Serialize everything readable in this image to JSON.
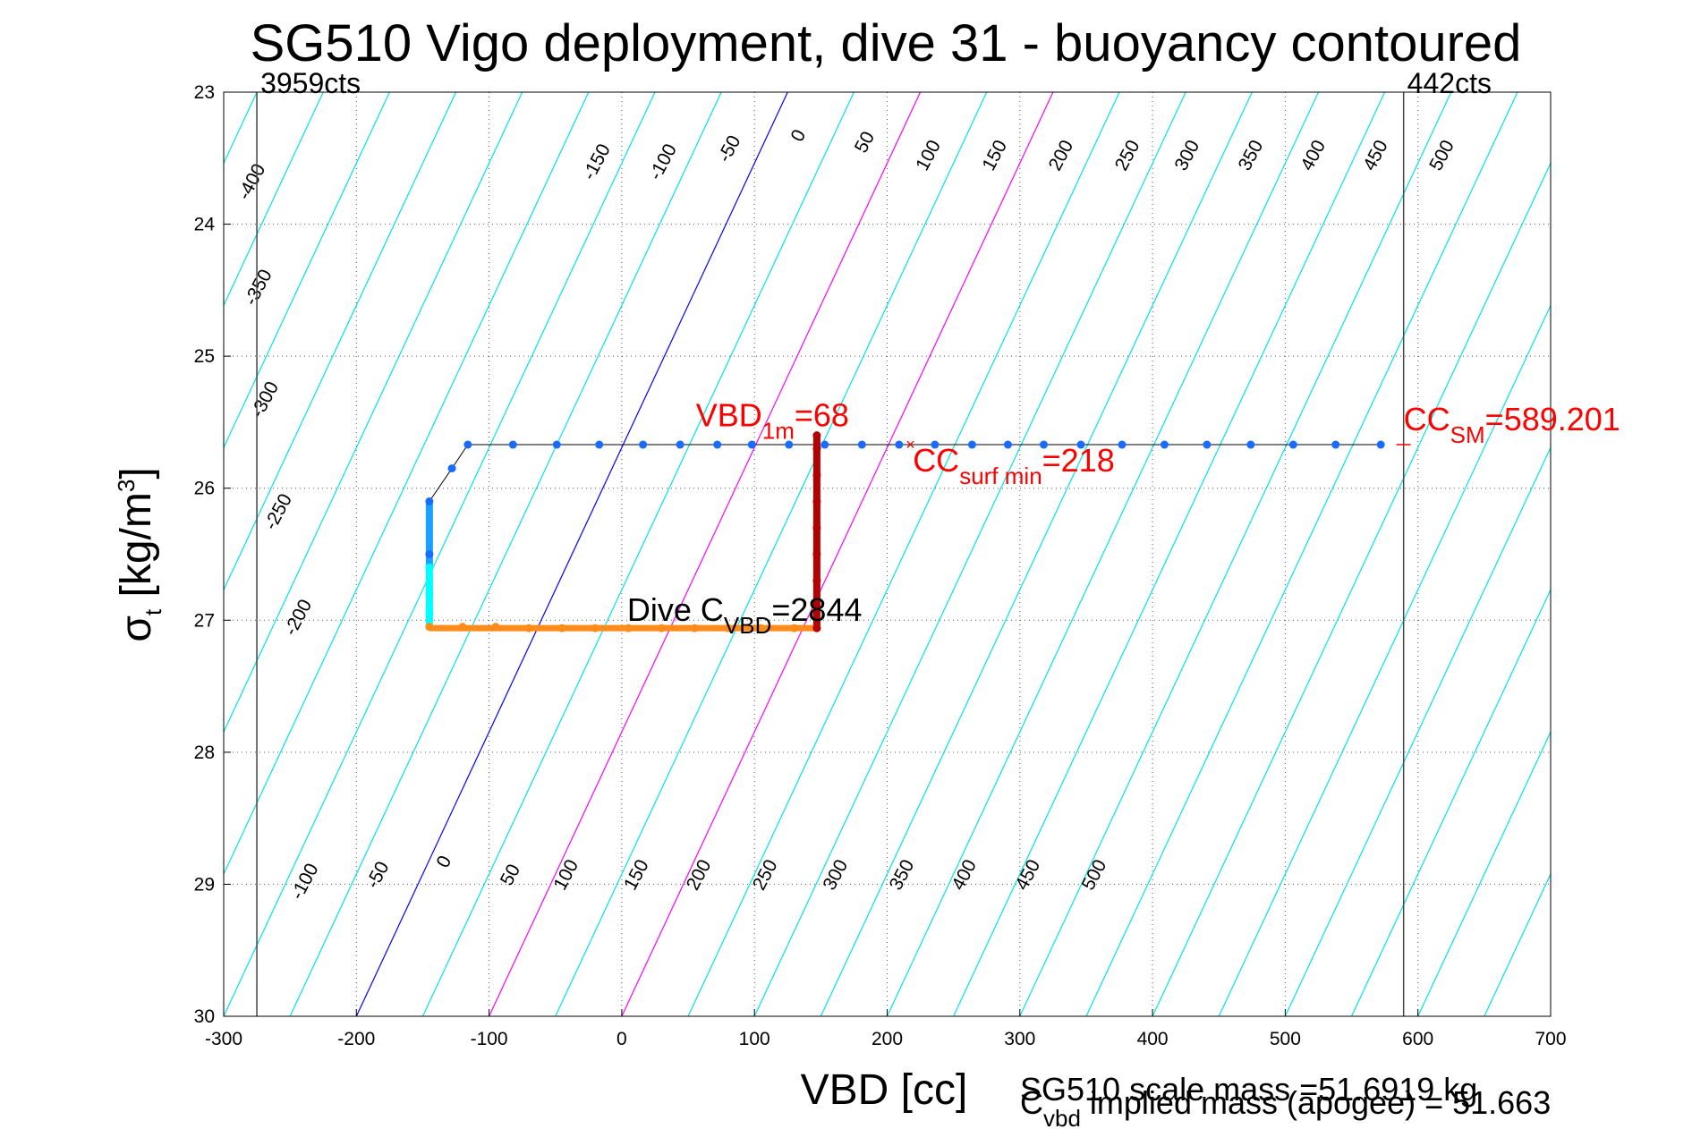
{
  "chart_data": {
    "type": "scatter",
    "title": "SG510 Vigo deployment, dive 31 - buoyancy contoured",
    "xlabel": "VBD [cc]",
    "ylabel_main": "σ",
    "ylabel_sub": "t",
    "ylabel_unit": " [kg/m",
    "ylabel_sup": "3",
    "ylabel_close": "]",
    "xlim": [
      -300,
      700
    ],
    "ylim": [
      23,
      30
    ],
    "y_reversed": true,
    "grid": true,
    "x_ticks": [
      -300,
      -200,
      -100,
      0,
      100,
      200,
      300,
      400,
      500,
      600,
      700
    ],
    "y_ticks": [
      23,
      24,
      25,
      26,
      27,
      28,
      29,
      30
    ],
    "colors": {
      "contour": "#00e5e5",
      "zero_contour": "#0000ff",
      "highlight_contour": "#ff00ff",
      "annotation": "#ff0000",
      "descent": "#1a6bff",
      "bottom": "#ff8c1a",
      "ascent": "#b30000",
      "apogee": "#00ffff"
    },
    "contour_series": [
      {
        "value": -400,
        "x_at_23": -525,
        "x_at_30": -1050,
        "label": "-400"
      },
      {
        "value": -350,
        "x_at_23": -475,
        "x_at_30": -1000,
        "label": "-350"
      },
      {
        "value": -300,
        "x_at_23": -425,
        "x_at_30": -950,
        "label": "-300"
      },
      {
        "value": -250,
        "x_at_23": -375,
        "x_at_30": -900,
        "label": "-250"
      },
      {
        "value": -200,
        "x_at_23": -325,
        "x_at_30": -800,
        "label": "-200"
      },
      {
        "value": -150,
        "x_at_23": -275,
        "x_at_30": -700,
        "label": "-150"
      },
      {
        "value": -100,
        "x_at_23": -225,
        "x_at_30": -600,
        "label": "-100"
      },
      {
        "value": -50,
        "x_at_23": -175,
        "x_at_30": -500,
        "label": "-50"
      },
      {
        "value": 0,
        "x_at_23": -125,
        "x_at_30": -450,
        "label": ""
      },
      {
        "value": 50,
        "x_at_23": -75,
        "x_at_30": -400,
        "label": ""
      },
      {
        "value": 100,
        "x_at_23": -25,
        "x_at_30": -350,
        "label": ""
      },
      {
        "value": 150,
        "x_at_23": 25,
        "x_at_30": -300,
        "label": ""
      },
      {
        "value": 200,
        "x_at_23": 75,
        "x_at_30": -250,
        "label": ""
      },
      {
        "value": 250,
        "x_at_23": 125,
        "x_at_30": -200,
        "label": ""
      }
    ],
    "contour_labels_top": [
      {
        "text": "-400",
        "x": -275,
        "y": 23.7
      },
      {
        "text": "-350",
        "x": -270,
        "y": 24.5
      },
      {
        "text": "-300",
        "x": -265,
        "y": 25.35
      },
      {
        "text": "-250",
        "x": -255,
        "y": 26.2
      },
      {
        "text": "-200",
        "x": -240,
        "y": 27.0
      },
      {
        "text": "-150",
        "x": -15,
        "y": 23.55
      },
      {
        "text": "-100",
        "x": 35,
        "y": 23.55
      },
      {
        "text": "-50",
        "x": 85,
        "y": 23.45
      },
      {
        "text": "0",
        "x": 137,
        "y": 23.35
      },
      {
        "text": "50",
        "x": 187,
        "y": 23.4
      },
      {
        "text": "100",
        "x": 235,
        "y": 23.5
      },
      {
        "text": "150",
        "x": 285,
        "y": 23.5
      },
      {
        "text": "200",
        "x": 335,
        "y": 23.5
      },
      {
        "text": "250",
        "x": 385,
        "y": 23.5
      },
      {
        "text": "300",
        "x": 430,
        "y": 23.5
      },
      {
        "text": "350",
        "x": 478,
        "y": 23.5
      },
      {
        "text": "400",
        "x": 525,
        "y": 23.5
      },
      {
        "text": "450",
        "x": 572,
        "y": 23.5
      },
      {
        "text": "500",
        "x": 622,
        "y": 23.5
      }
    ],
    "contour_labels_bottom": [
      {
        "text": "-100",
        "x": -235,
        "y": 29.0
      },
      {
        "text": "-50",
        "x": -180,
        "y": 28.95
      },
      {
        "text": "0",
        "x": -130,
        "y": 28.85
      },
      {
        "text": "50",
        "x": -80,
        "y": 28.95
      },
      {
        "text": "100",
        "x": -38,
        "y": 28.95
      },
      {
        "text": "150",
        "x": 15,
        "y": 28.95
      },
      {
        "text": "200",
        "x": 62,
        "y": 28.95
      },
      {
        "text": "250",
        "x": 112,
        "y": 28.95
      },
      {
        "text": "300",
        "x": 165,
        "y": 28.95
      },
      {
        "text": "350",
        "x": 215,
        "y": 28.95
      },
      {
        "text": "400",
        "x": 262,
        "y": 28.95
      },
      {
        "text": "450",
        "x": 310,
        "y": 28.95
      },
      {
        "text": "500",
        "x": 360,
        "y": 28.95
      }
    ],
    "vertical_lines": [
      {
        "x": -275,
        "label": "3959cts"
      },
      {
        "x": 589.2,
        "label": "442cts"
      }
    ],
    "descent": {
      "x": [
        572,
        538,
        506,
        474,
        441,
        409,
        377,
        346,
        318,
        291,
        264,
        236,
        209,
        181,
        153,
        126,
        98,
        72,
        44,
        16,
        -17,
        -49,
        -82,
        -116,
        -128,
        -145,
        -145
      ],
      "y": [
        25.67,
        25.67,
        25.67,
        25.67,
        25.67,
        25.67,
        25.67,
        25.67,
        25.67,
        25.67,
        25.67,
        25.67,
        25.67,
        25.67,
        25.67,
        25.67,
        25.67,
        25.67,
        25.67,
        25.67,
        25.67,
        25.67,
        25.67,
        25.67,
        25.85,
        26.1,
        26.5
      ]
    },
    "apogee": {
      "x": [
        -145,
        -145,
        -145,
        -145
      ],
      "y": [
        26.6,
        26.8,
        26.95,
        27.05
      ]
    },
    "bottom": {
      "x": [
        -145,
        -120,
        -95,
        -70,
        -45,
        -20,
        5,
        30,
        55,
        80,
        105,
        130,
        147
      ],
      "y": [
        27.05,
        27.05,
        27.05,
        27.06,
        27.06,
        27.06,
        27.06,
        27.06,
        27.06,
        27.06,
        27.06,
        27.06,
        27.06
      ]
    },
    "ascent": {
      "x": [
        147,
        147,
        147,
        147,
        147,
        147,
        147,
        147,
        147
      ],
      "y": [
        27.06,
        26.9,
        26.7,
        26.5,
        26.3,
        26.1,
        25.9,
        25.7,
        25.6
      ]
    },
    "annotations": {
      "vbd_1m": {
        "main": "VBD",
        "sub": "1m",
        "tail": "=68",
        "x": 68,
        "y": 25.6
      },
      "cc_surf": {
        "main": "CC",
        "sub": "surf min",
        "tail": "=218",
        "x": 218,
        "y": 25.67
      },
      "cc_sm": {
        "main": "CC",
        "sub": "SM",
        "tail": "=589.201",
        "x": 589.2,
        "y": 25.67
      },
      "dive_c": {
        "main": "Dive C",
        "sub": "VBD",
        "tail": "=2844",
        "x": 147,
        "y": 27.06
      }
    },
    "footer_line1": "SG510 scale mass =51.6919 kg",
    "footer_line2_main": "C",
    "footer_line2_sub": "vbd",
    "footer_line2_tail": " implied mass (apogee) = 51.663"
  }
}
